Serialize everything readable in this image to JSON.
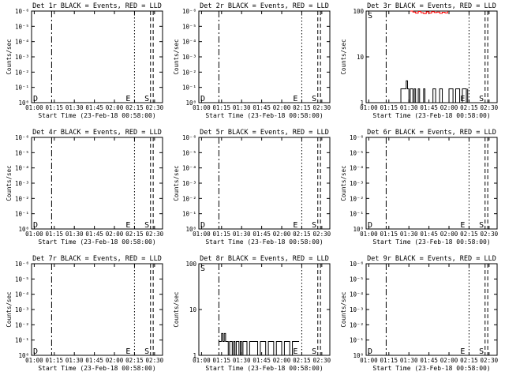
{
  "figure": {
    "x_label_text": "Start Time (23-Feb-18 00:58:00)",
    "y_label_text": "Counts/sec",
    "x_tick_labels": [
      "01:00",
      "01:15",
      "01:30",
      "01:45",
      "02:00",
      "02:15",
      "02:30"
    ],
    "marker_labels": {
      "D": "D",
      "E": "E",
      "S": "S"
    },
    "colors": {
      "events": "#000000",
      "lld": "#ff0000",
      "axes": "#000000"
    }
  },
  "chart_data": [
    {
      "type": "line",
      "title": "Det 1r BLACK = Events, RED = LLD",
      "xlabel": "Start Time (23-Feb-18 00:58:00)",
      "ylabel": "Counts/sec",
      "x_range": [
        "00:58",
        "02:36"
      ],
      "y_scale": "log",
      "ylim": [
        1e-08,
        1e-06
      ],
      "y_tick_labels": [
        "10⁻⁶",
        "10⁻⁵",
        "10⁻⁴",
        "10⁻³",
        "10⁻²",
        "10⁻¹",
        "10⁰"
      ],
      "vertical_markers": [
        {
          "time": "01:13",
          "style": "dashdot"
        },
        {
          "time": "02:15",
          "style": "dotted",
          "label": "E"
        },
        {
          "time": "02:27",
          "style": "dashed"
        },
        {
          "time": "02:29",
          "style": "dashed",
          "label": "S"
        }
      ],
      "corner_label": "D",
      "series": []
    },
    {
      "type": "line",
      "title": "Det 2r BLACK = Events, RED = LLD",
      "xlabel": "Start Time (23-Feb-18 00:58:00)",
      "ylabel": "Counts/sec",
      "x_range": [
        "00:58",
        "02:36"
      ],
      "y_scale": "log",
      "ylim": [
        1e-08,
        1e-06
      ],
      "y_tick_labels": [
        "10⁻⁶",
        "10⁻⁵",
        "10⁻⁴",
        "10⁻³",
        "10⁻²",
        "10⁻¹",
        "10⁰"
      ],
      "vertical_markers": [
        {
          "time": "01:13",
          "style": "dashdot"
        },
        {
          "time": "02:15",
          "style": "dotted",
          "label": "E"
        },
        {
          "time": "02:27",
          "style": "dashed"
        },
        {
          "time": "02:29",
          "style": "dashed",
          "label": "S"
        }
      ],
      "corner_label": "D",
      "series": []
    },
    {
      "type": "line",
      "title": "Det 3r BLACK = Events, RED = LLD",
      "xlabel": "Start Time (23-Feb-18 00:58:00)",
      "ylabel": "Counts/sec",
      "x_range": [
        "00:58",
        "02:36"
      ],
      "y_scale": "log",
      "ylim": [
        1,
        100
      ],
      "y_tick_labels": [
        "1",
        "10",
        "100"
      ],
      "vertical_markers": [
        {
          "time": "01:13",
          "style": "dashdot"
        },
        {
          "time": "02:15",
          "style": "dotted",
          "label": "E"
        },
        {
          "time": "02:27",
          "style": "dashed"
        },
        {
          "time": "02:29",
          "style": "dashed",
          "label": "S"
        }
      ],
      "corner_label": "S",
      "series": [
        {
          "name": "Events",
          "color": "#000000",
          "x": [
            "01:23",
            "01:24",
            "01:25",
            "01:26",
            "01:27",
            "01:28",
            "01:29",
            "01:30",
            "01:31",
            "01:32",
            "01:33",
            "01:34",
            "01:35",
            "01:36",
            "01:37",
            "01:38",
            "01:40",
            "01:41",
            "01:42",
            "01:44",
            "01:46",
            "01:48",
            "01:50",
            "01:53",
            "01:55",
            "01:57",
            "02:00",
            "02:03",
            "02:05",
            "02:08",
            "02:10",
            "02:13",
            "02:14"
          ],
          "y": [
            1,
            2,
            2,
            2,
            2,
            3,
            2,
            1,
            2,
            2,
            1,
            2,
            1,
            1,
            2,
            1,
            1,
            2,
            1,
            1,
            1,
            2,
            1,
            2,
            1,
            1,
            2,
            1,
            2,
            1,
            2,
            1,
            2
          ]
        },
        {
          "name": "LLD",
          "color": "#ff0000",
          "x": [
            "01:31",
            "01:33",
            "01:35",
            "01:37",
            "01:39",
            "01:41",
            "01:43",
            "01:45",
            "01:47",
            "01:49",
            "01:51",
            "01:53",
            "01:55",
            "01:57",
            "01:59"
          ],
          "y": [
            100,
            95,
            90,
            98,
            92,
            88,
            96,
            90,
            97,
            93,
            95,
            89,
            94,
            91,
            99
          ]
        }
      ]
    },
    {
      "type": "line",
      "title": "Det 4r BLACK = Events, RED = LLD",
      "xlabel": "Start Time (23-Feb-18 00:58:00)",
      "ylabel": "Counts/sec",
      "x_range": [
        "00:58",
        "02:36"
      ],
      "y_scale": "log",
      "ylim": [
        1e-08,
        1e-06
      ],
      "y_tick_labels": [
        "10⁻⁶",
        "10⁻⁵",
        "10⁻⁴",
        "10⁻³",
        "10⁻²",
        "10⁻¹",
        "10⁰"
      ],
      "vertical_markers": [
        {
          "time": "01:13",
          "style": "dashdot"
        },
        {
          "time": "02:15",
          "style": "dotted",
          "label": "E"
        },
        {
          "time": "02:27",
          "style": "dashed"
        },
        {
          "time": "02:29",
          "style": "dashed",
          "label": "S"
        }
      ],
      "corner_label": "D",
      "series": []
    },
    {
      "type": "line",
      "title": "Det 5r BLACK = Events, RED = LLD",
      "xlabel": "Start Time (23-Feb-18 00:58:00)",
      "ylabel": "Counts/sec",
      "x_range": [
        "00:58",
        "02:36"
      ],
      "y_scale": "log",
      "ylim": [
        1e-08,
        1e-06
      ],
      "y_tick_labels": [
        "10⁻⁶",
        "10⁻⁵",
        "10⁻⁴",
        "10⁻³",
        "10⁻²",
        "10⁻¹",
        "10⁰"
      ],
      "vertical_markers": [
        {
          "time": "01:13",
          "style": "dashdot"
        },
        {
          "time": "02:15",
          "style": "dotted",
          "label": "E"
        },
        {
          "time": "02:27",
          "style": "dashed"
        },
        {
          "time": "02:29",
          "style": "dashed",
          "label": "S"
        }
      ],
      "corner_label": "D",
      "series": []
    },
    {
      "type": "line",
      "title": "Det 6r BLACK = Events, RED = LLD",
      "xlabel": "Start Time (23-Feb-18 00:58:00)",
      "ylabel": "Counts/sec",
      "x_range": [
        "00:58",
        "02:36"
      ],
      "y_scale": "log",
      "ylim": [
        1e-08,
        1e-06
      ],
      "y_tick_labels": [
        "10⁻⁶",
        "10⁻⁵",
        "10⁻⁴",
        "10⁻³",
        "10⁻²",
        "10⁻¹",
        "10⁰"
      ],
      "vertical_markers": [
        {
          "time": "01:13",
          "style": "dashdot"
        },
        {
          "time": "02:15",
          "style": "dotted",
          "label": "E"
        },
        {
          "time": "02:27",
          "style": "dashed"
        },
        {
          "time": "02:29",
          "style": "dashed",
          "label": "S"
        }
      ],
      "corner_label": "D",
      "series": []
    },
    {
      "type": "line",
      "title": "Det 7r BLACK = Events, RED = LLD",
      "xlabel": "Start Time (23-Feb-18 00:58:00)",
      "ylabel": "Counts/sec",
      "x_range": [
        "00:58",
        "02:36"
      ],
      "y_scale": "log",
      "ylim": [
        1e-08,
        1e-06
      ],
      "y_tick_labels": [
        "10⁻⁶",
        "10⁻⁵",
        "10⁻⁴",
        "10⁻³",
        "10⁻²",
        "10⁻¹",
        "10⁰"
      ],
      "vertical_markers": [
        {
          "time": "01:13",
          "style": "dashdot"
        },
        {
          "time": "02:15",
          "style": "dotted",
          "label": "E"
        },
        {
          "time": "02:27",
          "style": "dashed"
        },
        {
          "time": "02:29",
          "style": "dashed",
          "label": "S"
        }
      ],
      "corner_label": "D",
      "series": []
    },
    {
      "type": "line",
      "title": "Det 8r BLACK = Events, RED = LLD",
      "xlabel": "Start Time (23-Feb-18 00:58:00)",
      "ylabel": "Counts/sec",
      "x_range": [
        "00:58",
        "02:36"
      ],
      "y_scale": "log",
      "ylim": [
        1,
        100
      ],
      "y_tick_labels": [
        "1",
        "10",
        "100"
      ],
      "vertical_markers": [
        {
          "time": "01:13",
          "style": "dashdot"
        },
        {
          "time": "02:15",
          "style": "dotted",
          "label": "E"
        },
        {
          "time": "02:27",
          "style": "dashed"
        },
        {
          "time": "02:29",
          "style": "dashed",
          "label": "S"
        }
      ],
      "corner_label": "S",
      "series": [
        {
          "name": "Events",
          "color": "#000000",
          "x": [
            "01:13",
            "01:14",
            "01:15",
            "01:16",
            "01:17",
            "01:18",
            "01:19",
            "01:20",
            "01:21",
            "01:22",
            "01:23",
            "01:24",
            "01:25",
            "01:26",
            "01:27",
            "01:28",
            "01:29",
            "01:30",
            "01:31",
            "01:32",
            "01:34",
            "01:36",
            "01:38",
            "01:40",
            "01:42",
            "01:44",
            "01:46",
            "01:48",
            "01:50",
            "01:52",
            "01:54",
            "01:56",
            "01:58",
            "02:00",
            "02:02",
            "02:04",
            "02:06",
            "02:08",
            "02:10",
            "02:12",
            "02:13"
          ],
          "y": [
            2,
            2,
            3,
            2,
            3,
            2,
            2,
            1,
            2,
            2,
            1,
            2,
            1,
            2,
            2,
            1,
            2,
            1,
            2,
            2,
            1,
            2,
            2,
            2,
            1,
            2,
            2,
            1,
            2,
            2,
            1,
            2,
            2,
            1,
            2,
            2,
            1,
            2,
            2,
            2,
            2
          ]
        }
      ]
    },
    {
      "type": "line",
      "title": "Det 9r BLACK = Events, RED = LLD",
      "xlabel": "Start Time (23-Feb-18 00:58:00)",
      "ylabel": "Counts/sec",
      "x_range": [
        "00:58",
        "02:36"
      ],
      "y_scale": "log",
      "ylim": [
        1e-08,
        1e-06
      ],
      "y_tick_labels": [
        "10⁻⁶",
        "10⁻⁵",
        "10⁻⁴",
        "10⁻³",
        "10⁻²",
        "10⁻¹",
        "10⁰"
      ],
      "vertical_markers": [
        {
          "time": "01:13",
          "style": "dashdot"
        },
        {
          "time": "02:15",
          "style": "dotted",
          "label": "E"
        },
        {
          "time": "02:27",
          "style": "dashed"
        },
        {
          "time": "02:29",
          "style": "dashed",
          "label": "S"
        }
      ],
      "corner_label": "D",
      "series": []
    }
  ]
}
